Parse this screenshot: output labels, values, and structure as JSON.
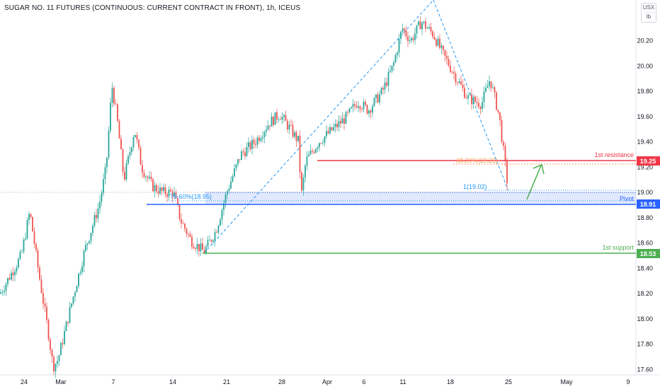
{
  "title": "SUGAR NO. 11 FUTURES (CONTINUOUS: CURRENT CONTRACT IN FRONT), 1h, ICEUS",
  "unit_top": "USX",
  "unit_bottom": "lb",
  "colors": {
    "up": "#26a69a",
    "down": "#ef5350",
    "resistance": "#f23645",
    "pivot": "#2962ff",
    "support": "#4caf50",
    "arrow": "#4caf50",
    "fib_dash": "#2196f3",
    "fib_orange": "#f7a35c"
  },
  "chart_data": {
    "type": "candlestick",
    "timeframe": "1h",
    "ylim": [
      17.58,
      20.5
    ],
    "y_ticks": [
      "20.20",
      "20.00",
      "19.80",
      "19.60",
      "19.40",
      "19.20",
      "19.00",
      "18.80",
      "18.60",
      "18.40",
      "18.20",
      "18.00",
      "17.80",
      "17.60"
    ],
    "x_ticks": [
      "24",
      "Mar",
      "7",
      "14",
      "21",
      "28",
      "Apr",
      "6",
      "11",
      "18",
      "25",
      "May",
      "9"
    ],
    "levels": [
      {
        "name": "1st resistance",
        "value": 19.25,
        "tag": "19.25"
      },
      {
        "name": "Pivot",
        "value": 18.91,
        "tag": "18.91"
      },
      {
        "name": "1st support",
        "value": 18.53,
        "tag": "18.53"
      }
    ],
    "fib_labels": {
      "left": "78.60%(18.95)",
      "right_top": "38.20%(19.23)",
      "right_low": "1(19.02)"
    },
    "price_points": [
      [
        0,
        18.2
      ],
      [
        30,
        18.5
      ],
      [
        42,
        18.85
      ],
      [
        55,
        18.35
      ],
      [
        68,
        17.9
      ],
      [
        75,
        17.62
      ],
      [
        82,
        17.68
      ],
      [
        100,
        18.1
      ],
      [
        120,
        18.55
      ],
      [
        140,
        18.9
      ],
      [
        150,
        19.2
      ],
      [
        158,
        19.85
      ],
      [
        165,
        19.6
      ],
      [
        175,
        19.1
      ],
      [
        190,
        19.5
      ],
      [
        200,
        19.2
      ],
      [
        215,
        19.05
      ],
      [
        230,
        19.0
      ],
      [
        245,
        19.0
      ],
      [
        255,
        18.78
      ],
      [
        270,
        18.62
      ],
      [
        288,
        18.53
      ],
      [
        305,
        18.7
      ],
      [
        320,
        19.0
      ],
      [
        340,
        19.3
      ],
      [
        360,
        19.4
      ],
      [
        380,
        19.55
      ],
      [
        395,
        19.62
      ],
      [
        410,
        19.5
      ],
      [
        422,
        19.4
      ],
      [
        425,
        18.95
      ],
      [
        432,
        19.25
      ],
      [
        450,
        19.4
      ],
      [
        470,
        19.5
      ],
      [
        490,
        19.6
      ],
      [
        505,
        19.72
      ],
      [
        520,
        19.65
      ],
      [
        540,
        19.8
      ],
      [
        555,
        20.0
      ],
      [
        568,
        20.3
      ],
      [
        580,
        20.2
      ],
      [
        595,
        20.35
      ],
      [
        612,
        20.25
      ],
      [
        625,
        20.1
      ],
      [
        640,
        19.95
      ],
      [
        660,
        19.75
      ],
      [
        680,
        19.7
      ],
      [
        692,
        19.9
      ],
      [
        705,
        19.6
      ],
      [
        712,
        19.28
      ],
      [
        718,
        19.0
      ]
    ]
  }
}
